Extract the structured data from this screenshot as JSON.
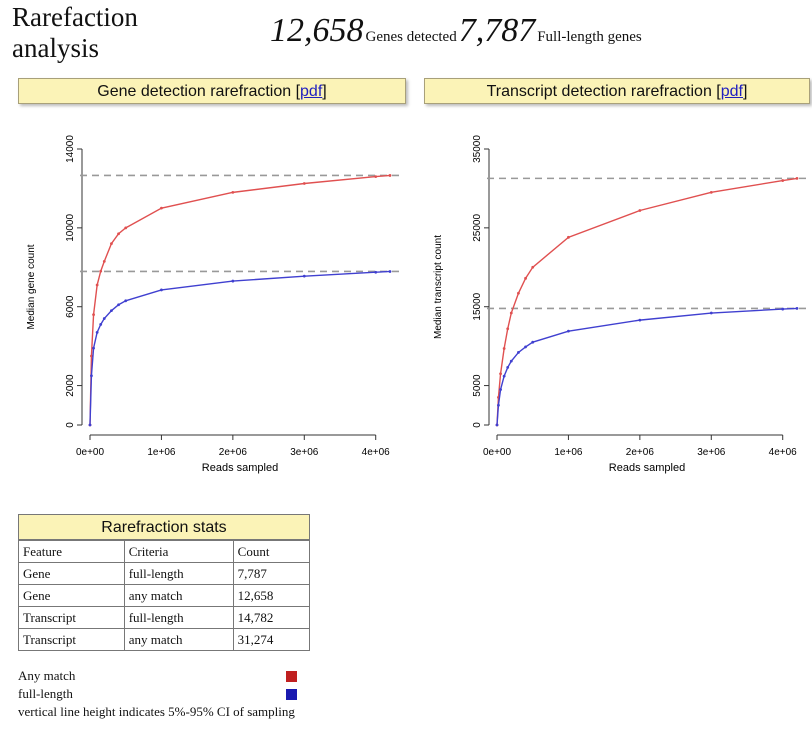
{
  "header": {
    "title": "Rarefaction analysis",
    "genes_detected_value": "12,658",
    "genes_detected_label": "Genes detected",
    "full_length_value": "7,787",
    "full_length_label": "Full-length genes"
  },
  "panels": [
    {
      "title": "Gene detection rarefraction [",
      "link": "pdf",
      "close": "]"
    },
    {
      "title": "Transcript detection rarefraction [",
      "link": "pdf",
      "close": "]"
    }
  ],
  "colors": {
    "any_match": "#e05050",
    "full_length": "#4040d0",
    "header_bg": "#fbf3b7",
    "ref_line": "#999999"
  },
  "chart_data": [
    {
      "type": "line",
      "title": "",
      "xlabel": "Reads sampled",
      "ylabel": "Median gene count",
      "xlim": [
        0,
        4200000
      ],
      "ylim": [
        0,
        14000
      ],
      "x_ticks": [
        0,
        1000000,
        2000000,
        3000000,
        4000000
      ],
      "x_tick_labels": [
        "0e+00",
        "1e+06",
        "2e+06",
        "3e+06",
        "4e+06"
      ],
      "y_ticks": [
        0,
        2000,
        6000,
        10000,
        14000
      ],
      "y_tick_labels": [
        "0",
        "2000",
        "6000",
        "10000",
        "14000"
      ],
      "hlines": [
        12658,
        7787
      ],
      "series": [
        {
          "name": "Any match",
          "color": "#e05050",
          "x": [
            0,
            20000,
            50000,
            100000,
            150000,
            200000,
            300000,
            400000,
            500000,
            1000000,
            2000000,
            3000000,
            4000000,
            4200000
          ],
          "y": [
            0,
            3500,
            5600,
            7100,
            7800,
            8300,
            9200,
            9700,
            10000,
            11000,
            11800,
            12250,
            12600,
            12658
          ]
        },
        {
          "name": "full-length",
          "color": "#4040d0",
          "x": [
            0,
            20000,
            50000,
            100000,
            150000,
            200000,
            300000,
            400000,
            500000,
            1000000,
            2000000,
            3000000,
            4000000,
            4200000
          ],
          "y": [
            0,
            2500,
            3900,
            4700,
            5100,
            5400,
            5800,
            6100,
            6300,
            6850,
            7300,
            7550,
            7750,
            7787
          ]
        }
      ]
    },
    {
      "type": "line",
      "title": "",
      "xlabel": "Reads sampled",
      "ylabel": "Median transcript count",
      "xlim": [
        0,
        4200000
      ],
      "ylim": [
        0,
        35000
      ],
      "x_ticks": [
        0,
        1000000,
        2000000,
        3000000,
        4000000
      ],
      "x_tick_labels": [
        "0e+00",
        "1e+06",
        "2e+06",
        "3e+06",
        "4e+06"
      ],
      "y_ticks": [
        0,
        5000,
        15000,
        25000,
        35000
      ],
      "y_tick_labels": [
        "0",
        "5000",
        "15000",
        "25000",
        "35000"
      ],
      "hlines": [
        31274,
        14782
      ],
      "series": [
        {
          "name": "Any match",
          "color": "#e05050",
          "x": [
            0,
            20000,
            50000,
            100000,
            150000,
            200000,
            300000,
            400000,
            500000,
            1000000,
            2000000,
            3000000,
            4000000,
            4200000
          ],
          "y": [
            0,
            3500,
            6500,
            9700,
            12200,
            14200,
            16700,
            18600,
            20000,
            23800,
            27200,
            29500,
            31000,
            31274
          ]
        },
        {
          "name": "full-length",
          "color": "#4040d0",
          "x": [
            0,
            20000,
            50000,
            100000,
            150000,
            200000,
            300000,
            400000,
            500000,
            1000000,
            2000000,
            3000000,
            4000000,
            4200000
          ],
          "y": [
            0,
            2500,
            4500,
            6200,
            7300,
            8100,
            9200,
            9900,
            10500,
            11900,
            13300,
            14200,
            14700,
            14782
          ]
        }
      ]
    }
  ],
  "stats_table": {
    "title": "Rarefraction stats",
    "columns": [
      "Feature",
      "Criteria",
      "Count"
    ],
    "rows": [
      [
        "Gene",
        "full-length",
        "7,787"
      ],
      [
        "Gene",
        "any match",
        "12,658"
      ],
      [
        "Transcript",
        "full-length",
        "14,782"
      ],
      [
        "Transcript",
        "any match",
        "31,274"
      ]
    ]
  },
  "legend": {
    "any_match": "Any match",
    "full_length": "full-length",
    "note": "vertical line height indicates 5%-95% CI of sampling",
    "any_match_color": "#c02020",
    "full_length_color": "#1a1ab0"
  }
}
